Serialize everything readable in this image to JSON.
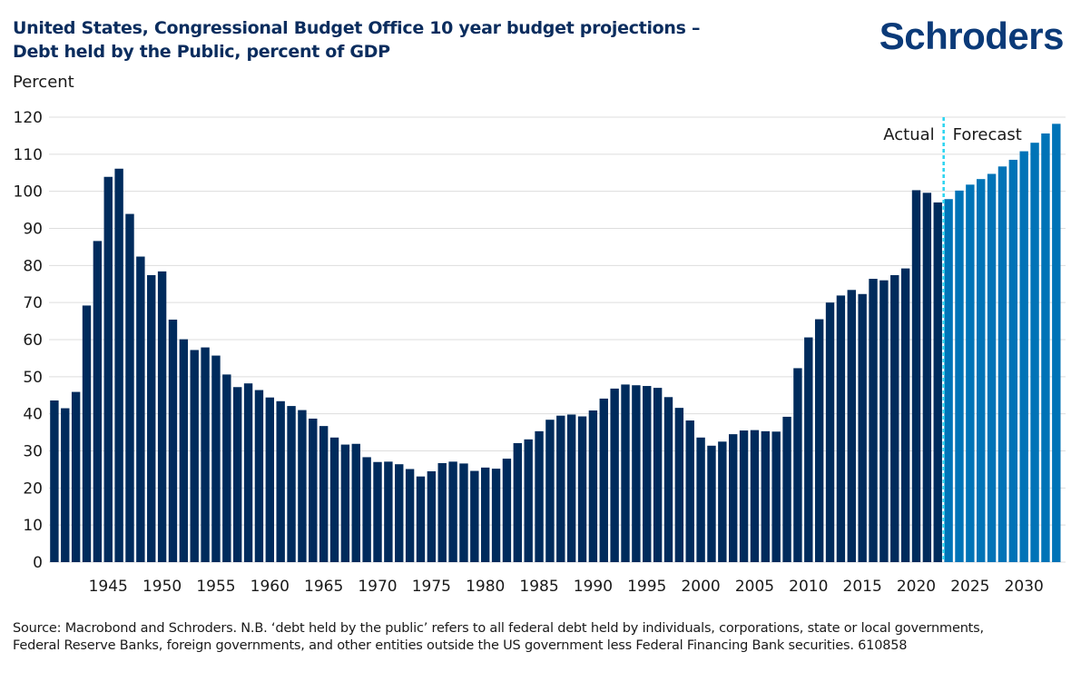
{
  "header": {
    "title_line1": "United States, Congressional Budget Office 10 year budget projections –",
    "title_line2": "Debt held by the Public, percent of GDP",
    "logo": "Schroders"
  },
  "colors": {
    "actual": "#002b5c",
    "forecast": "#0073b7",
    "divider": "#2ad4f0",
    "title": "#0b2d5e",
    "grid": "#dddddd"
  },
  "footer": {
    "source": "Source: Macrobond and Schroders. N.B. ‘debt held by the public’ refers to all federal debt held by individuals, corporations, state or local governments, Federal Reserve Banks, foreign governments, and other entities outside the US government less Federal Financing Bank securities. 610858"
  },
  "chart_data": {
    "type": "bar",
    "title": "United States, Congressional Budget Office 10 year budget projections – Debt held by the Public, percent of GDP",
    "ylabel": "Percent",
    "xlabel": "",
    "ylim": [
      0,
      120
    ],
    "yticks": [
      0,
      10,
      20,
      30,
      40,
      50,
      60,
      70,
      80,
      90,
      100,
      110,
      120
    ],
    "xtick_labels": [
      "1945",
      "1950",
      "1955",
      "1960",
      "1965",
      "1970",
      "1975",
      "1980",
      "1985",
      "1990",
      "1995",
      "2000",
      "2005",
      "2010",
      "2015",
      "2020",
      "2025",
      "2030"
    ],
    "grid": true,
    "annotations": [
      "Actual",
      "Forecast"
    ],
    "first_forecast_year": 2023,
    "series": [
      {
        "name": "Actual",
        "x_start": 1940,
        "values": [
          43.6,
          41.5,
          45.9,
          69.2,
          86.6,
          103.9,
          106.1,
          93.9,
          82.4,
          77.4,
          78.4,
          65.4,
          60.1,
          57.2,
          57.9,
          55.7,
          50.6,
          47.2,
          48.2,
          46.4,
          44.4,
          43.4,
          42.1,
          41.0,
          38.7,
          36.7,
          33.6,
          31.7,
          31.9,
          28.3,
          27.0,
          27.1,
          26.4,
          25.1,
          23.1,
          24.5,
          26.7,
          27.1,
          26.6,
          24.6,
          25.5,
          25.2,
          27.9,
          32.1,
          33.1,
          35.3,
          38.4,
          39.5,
          39.8,
          39.3,
          40.9,
          44.1,
          46.8,
          47.9,
          47.7,
          47.5,
          47.0,
          44.5,
          41.6,
          38.2,
          33.6,
          31.4,
          32.5,
          34.5,
          35.5,
          35.6,
          35.3,
          35.2,
          39.2,
          52.3,
          60.6,
          65.5,
          70.0,
          71.9,
          73.4,
          72.3,
          76.4,
          76.0,
          77.4,
          79.2,
          100.3,
          99.6,
          97.0
        ]
      },
      {
        "name": "Forecast",
        "x_start": 2023,
        "values": [
          97.9,
          100.2,
          101.8,
          103.3,
          104.7,
          106.7,
          108.5,
          110.8,
          113.1,
          115.6,
          118.2
        ]
      }
    ]
  }
}
